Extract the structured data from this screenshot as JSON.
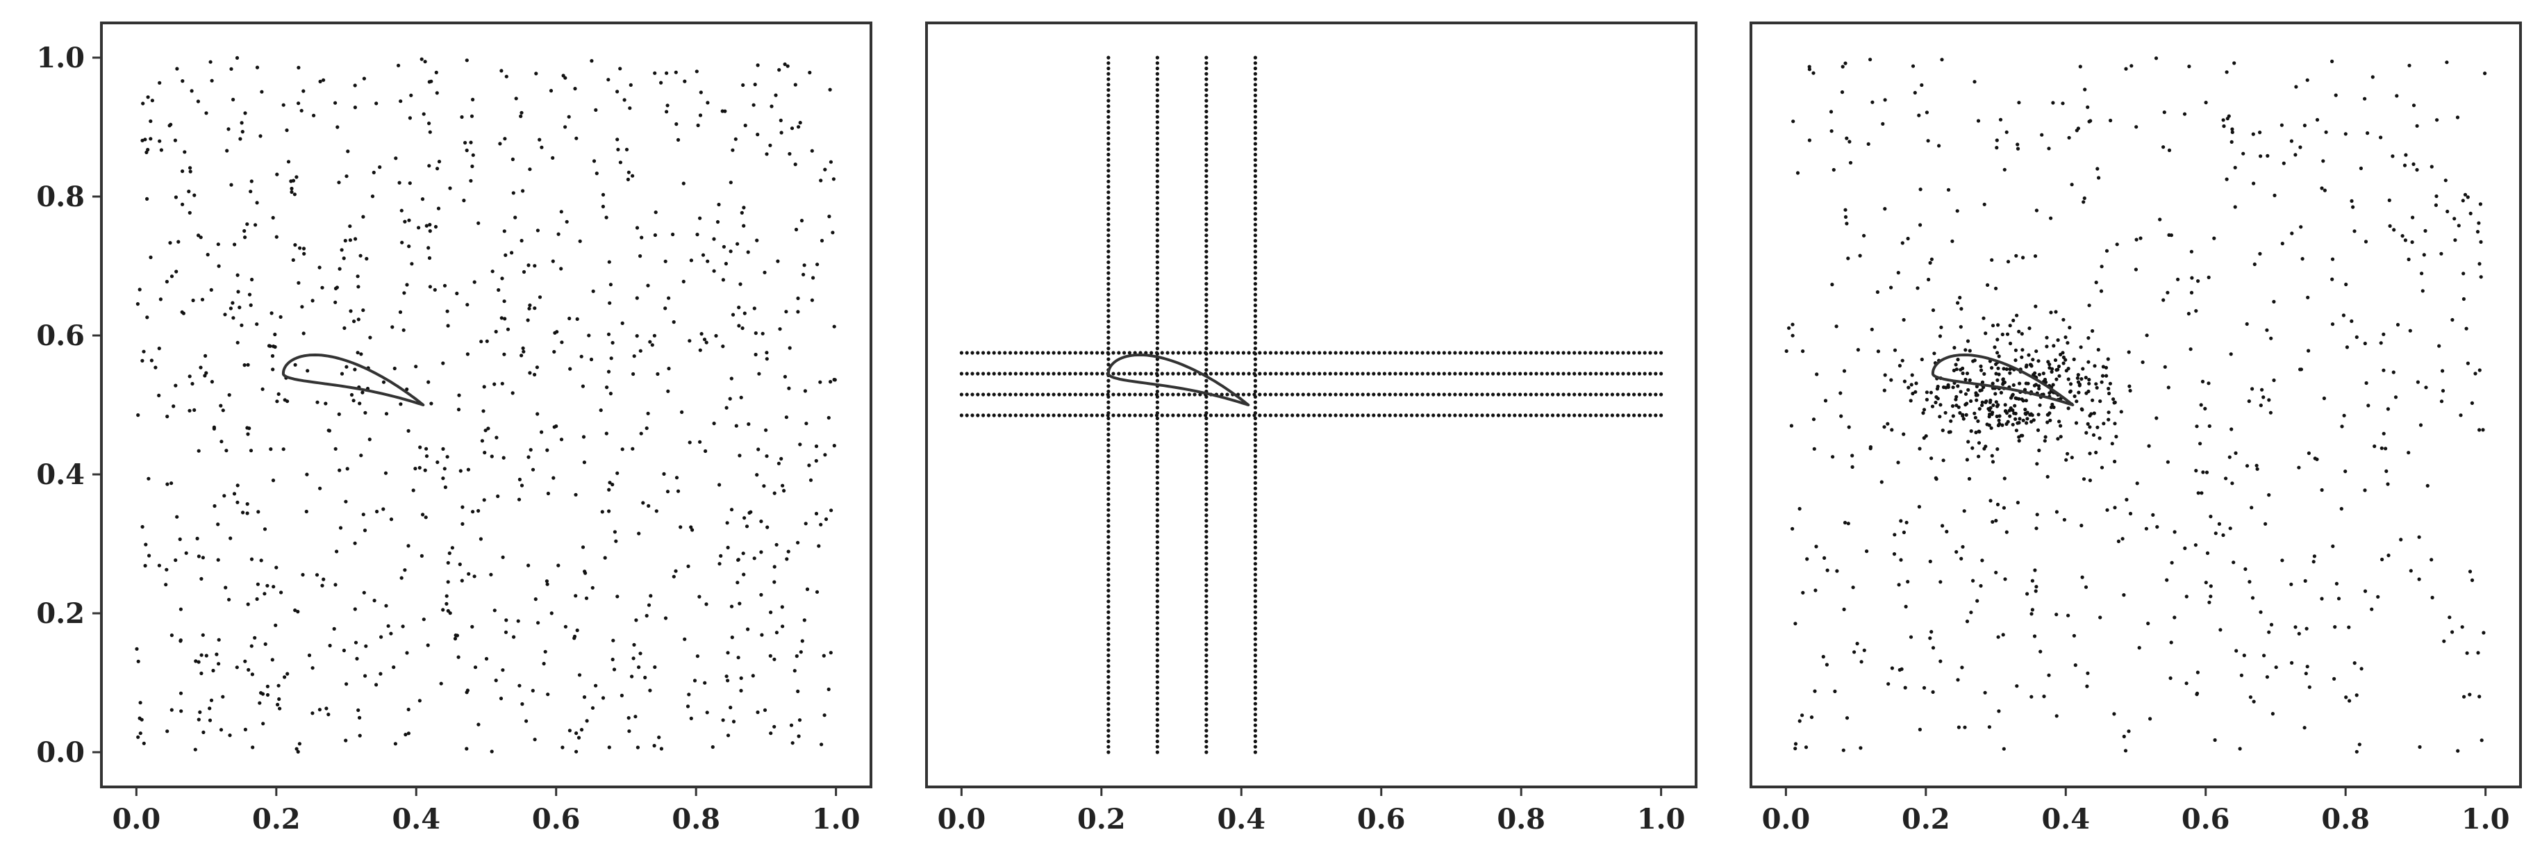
{
  "chart_data": [
    {
      "type": "scatter",
      "panel": "left",
      "title": "",
      "xlabel": "",
      "ylabel": "",
      "xlim": [
        -0.05,
        1.05
      ],
      "ylim": [
        -0.05,
        1.05
      ],
      "x_ticks": [
        "0.0",
        "0.2",
        "0.4",
        "0.6",
        "0.8",
        "1.0"
      ],
      "y_ticks": [
        "0.0",
        "0.2",
        "0.4",
        "0.6",
        "0.8",
        "1.0"
      ],
      "grid": false,
      "airfoil": {
        "leading_edge": [
          0.21,
          0.545
        ],
        "trailing_edge": [
          0.41,
          0.5
        ],
        "chord": 0.2,
        "max_thickness": 0.06
      },
      "sampling": {
        "kind": "uniform random",
        "region": [
          [
            0,
            1
          ],
          [
            0,
            1
          ]
        ],
        "approx_count": 1000
      }
    },
    {
      "type": "scatter",
      "panel": "middle",
      "title": "",
      "xlabel": "",
      "ylabel": "",
      "xlim": [
        -0.05,
        1.05
      ],
      "ylim": [
        -0.05,
        1.05
      ],
      "x_ticks": [
        "0.0",
        "0.2",
        "0.4",
        "0.6",
        "0.8",
        "1.0"
      ],
      "y_ticks": [],
      "grid": false,
      "airfoil": {
        "leading_edge": [
          0.21,
          0.545
        ],
        "trailing_edge": [
          0.41,
          0.5
        ],
        "chord": 0.2,
        "max_thickness": 0.06
      },
      "sampling": {
        "kind": "probe lines",
        "vertical_lines_x": [
          0.21,
          0.28,
          0.35,
          0.42
        ],
        "vertical_y_range": [
          0.0,
          1.0
        ],
        "horizontal_lines_y": [
          0.485,
          0.515,
          0.545,
          0.575
        ],
        "horizontal_x_range": [
          0.0,
          1.0
        ],
        "points_per_line": 130
      }
    },
    {
      "type": "scatter",
      "panel": "right",
      "title": "",
      "xlabel": "",
      "ylabel": "",
      "xlim": [
        -0.05,
        1.05
      ],
      "ylim": [
        -0.05,
        1.05
      ],
      "x_ticks": [
        "0.0",
        "0.2",
        "0.4",
        "0.6",
        "0.8",
        "1.0"
      ],
      "y_ticks": [],
      "grid": false,
      "airfoil": {
        "leading_edge": [
          0.21,
          0.545
        ],
        "trailing_edge": [
          0.41,
          0.5
        ],
        "chord": 0.2,
        "max_thickness": 0.06
      },
      "sampling": {
        "kind": "adaptive (refined near airfoil)",
        "background": {
          "region": [
            [
              0,
              1
            ],
            [
              0,
              1
            ]
          ],
          "approx_count": 650
        },
        "cluster": {
          "center": [
            0.32,
            0.52
          ],
          "spread": [
            0.07,
            0.04
          ],
          "approx_count": 350
        }
      }
    }
  ],
  "colors": {
    "points": "#111111",
    "airfoil": "#333333",
    "frame": "#333333"
  }
}
